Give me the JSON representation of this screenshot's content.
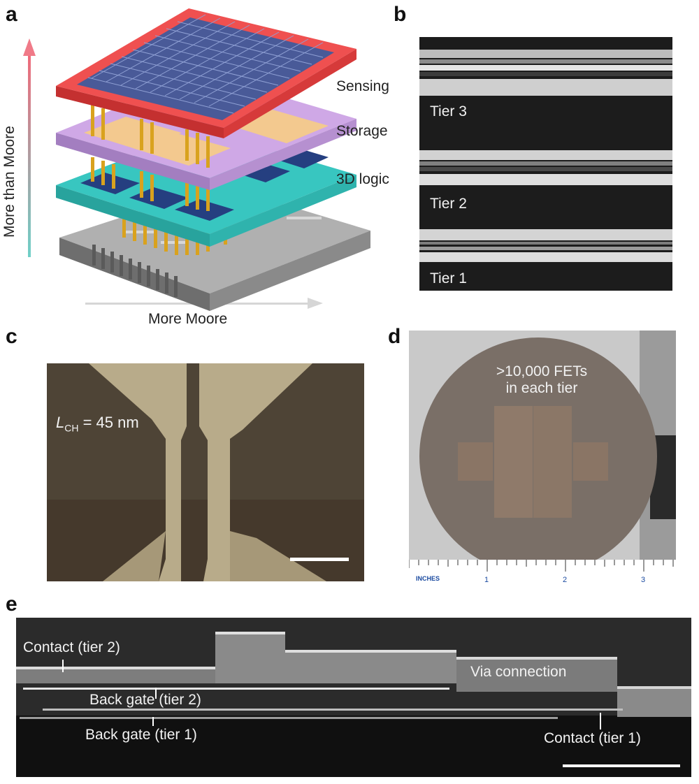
{
  "panels": {
    "a": {
      "letter": "a",
      "layer_labels": [
        "Sensing",
        "Storage",
        "3D logic"
      ],
      "vertical_axis": "More than Moore",
      "horizontal_axis": "More Moore",
      "colors": {
        "sensing": "#e84848",
        "storage": "#c9a3e0",
        "logic": "#38c6c0",
        "base": "#8d8d8d",
        "pillar": "#d9a21e"
      }
    },
    "b": {
      "letter": "b",
      "tiers": [
        "Tier 3",
        "Tier 2",
        "Tier 1"
      ]
    },
    "c": {
      "letter": "c",
      "label_L": "L",
      "label_sub": "CH",
      "label_value": " = 45 nm"
    },
    "d": {
      "letter": "d",
      "annotation_line1": ">10,000 FETs",
      "annotation_line2": "in each tier",
      "ruler_unit": "INCHES",
      "ruler_marks": [
        "1",
        "2",
        "3"
      ]
    },
    "e": {
      "letter": "e",
      "labels": {
        "contact_tier2": "Contact (tier 2)",
        "via": "Via connection",
        "back_gate_tier2": "Back gate (tier 2)",
        "back_gate_tier1": "Back gate (tier 1)",
        "contact_tier1": "Contact (tier 1)"
      }
    }
  }
}
